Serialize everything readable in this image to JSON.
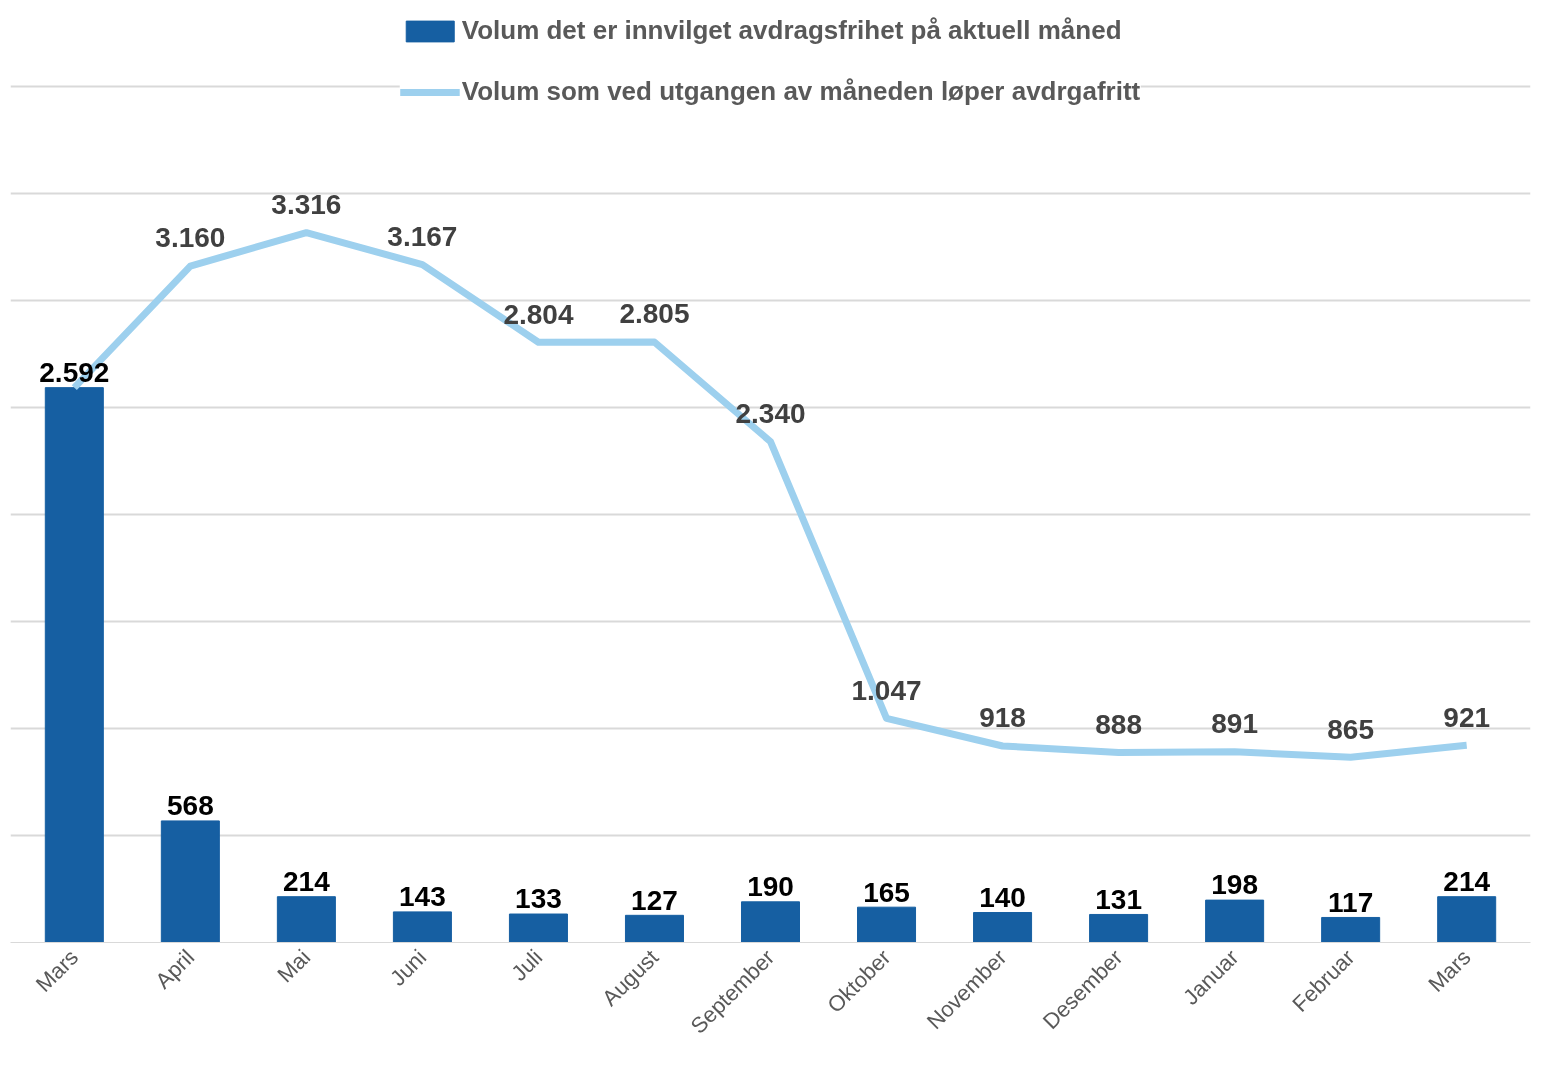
{
  "chart_data": {
    "type": "bar",
    "categories": [
      "Mars",
      "April",
      "Mai",
      "Juni",
      "Juli",
      "August",
      "September",
      "Oktober",
      "November",
      "Desember",
      "Januar",
      "Februar",
      "Mars"
    ],
    "series": [
      {
        "name": "Volum det er innvilget avdragsfrihet på aktuell måned",
        "color": "#165fa2",
        "values": [
          2592,
          568,
          214,
          143,
          133,
          127,
          190,
          165,
          140,
          131,
          198,
          117,
          214
        ],
        "value_labels": [
          "2.592",
          "568",
          "214",
          "143",
          "133",
          "127",
          "190",
          "165",
          "140",
          "131",
          "198",
          "117",
          "214"
        ]
      },
      {
        "name": "Volum som ved utgangen av måneden løper avdrgafritt",
        "type": "line",
        "color": "#9dd0ee",
        "values": [
          2592,
          3160,
          3316,
          3167,
          2804,
          2805,
          2340,
          1047,
          918,
          888,
          891,
          865,
          921
        ],
        "value_labels": [
          null,
          "3.160",
          "3.316",
          "3.167",
          "2.804",
          "2.805",
          "2.340",
          "1.047",
          "918",
          "888",
          "891",
          "865",
          "921"
        ]
      }
    ],
    "tick_labels": "x",
    "grid": "y",
    "legend": "top",
    "line_style": "solid"
  }
}
